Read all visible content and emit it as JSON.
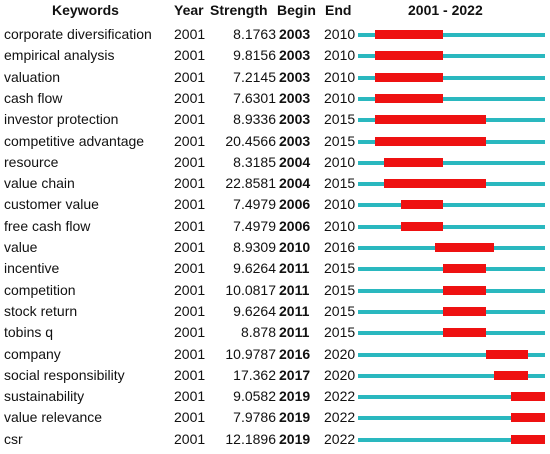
{
  "header": {
    "keywords": "Keywords",
    "year": "Year",
    "strength": "Strength",
    "begin": "Begin",
    "end": "End",
    "range": "2001 - 2022"
  },
  "colors": {
    "baseline": "#2ab8bf",
    "burst": "#ee1111"
  },
  "chart_data": {
    "type": "table",
    "title": "",
    "timeline_start": 2001,
    "timeline_end": 2022,
    "columns": [
      "Keywords",
      "Year",
      "Strength",
      "Begin",
      "End",
      "2001 - 2022"
    ],
    "rows": [
      {
        "keyword": "corporate diversification",
        "year": "2001",
        "strength": "8.1763",
        "begin": "2003",
        "end": "2010"
      },
      {
        "keyword": "empirical analysis",
        "year": "2001",
        "strength": "9.8156",
        "begin": "2003",
        "end": "2010"
      },
      {
        "keyword": "valuation",
        "year": "2001",
        "strength": "7.2145",
        "begin": "2003",
        "end": "2010"
      },
      {
        "keyword": "cash flow",
        "year": "2001",
        "strength": "7.6301",
        "begin": "2003",
        "end": "2010"
      },
      {
        "keyword": "investor protection",
        "year": "2001",
        "strength": "8.9336",
        "begin": "2003",
        "end": "2015"
      },
      {
        "keyword": "competitive advantage",
        "year": "2001",
        "strength": "20.4566",
        "begin": "2003",
        "end": "2015"
      },
      {
        "keyword": "resource",
        "year": "2001",
        "strength": "8.3185",
        "begin": "2004",
        "end": "2010"
      },
      {
        "keyword": "value chain",
        "year": "2001",
        "strength": "22.8581",
        "begin": "2004",
        "end": "2015"
      },
      {
        "keyword": "customer value",
        "year": "2001",
        "strength": "7.4979",
        "begin": "2006",
        "end": "2010"
      },
      {
        "keyword": "free cash flow",
        "year": "2001",
        "strength": "7.4979",
        "begin": "2006",
        "end": "2010"
      },
      {
        "keyword": "value",
        "year": "2001",
        "strength": "8.9309",
        "begin": "2010",
        "end": "2016"
      },
      {
        "keyword": "incentive",
        "year": "2001",
        "strength": "9.6264",
        "begin": "2011",
        "end": "2015"
      },
      {
        "keyword": "competition",
        "year": "2001",
        "strength": "10.0817",
        "begin": "2011",
        "end": "2015"
      },
      {
        "keyword": "stock return",
        "year": "2001",
        "strength": "9.6264",
        "begin": "2011",
        "end": "2015"
      },
      {
        "keyword": "tobins q",
        "year": "2001",
        "strength": "8.878",
        "begin": "2011",
        "end": "2015"
      },
      {
        "keyword": "company",
        "year": "2001",
        "strength": "10.9787",
        "begin": "2016",
        "end": "2020"
      },
      {
        "keyword": "social responsibility",
        "year": "2001",
        "strength": "17.362",
        "begin": "2017",
        "end": "2020"
      },
      {
        "keyword": "sustainability",
        "year": "2001",
        "strength": "9.0582",
        "begin": "2019",
        "end": "2022"
      },
      {
        "keyword": "value relevance",
        "year": "2001",
        "strength": "7.9786",
        "begin": "2019",
        "end": "2022"
      },
      {
        "keyword": "csr",
        "year": "2001",
        "strength": "12.1896",
        "begin": "2019",
        "end": "2022"
      }
    ]
  }
}
